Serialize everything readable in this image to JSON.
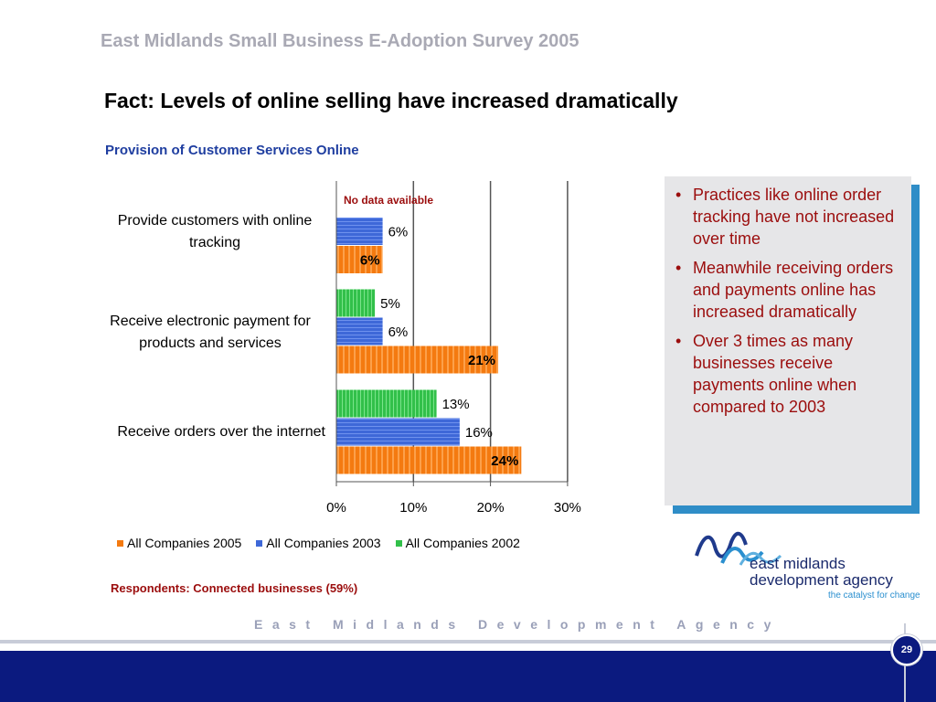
{
  "header": {
    "survey_title": "East Midlands Small Business E-Adoption Survey 2005",
    "fact_title": "Fact: Levels of online selling have increased dramatically"
  },
  "chart_data": {
    "type": "bar",
    "orientation": "horizontal",
    "title": "Provision of Customer Services Online",
    "categories": [
      "Provide customers with online tracking",
      "Receive electronic payment for products and services",
      "Receive orders over the internet"
    ],
    "series": [
      {
        "name": "All Companies 2005",
        "color": "#f47a10",
        "values": [
          6,
          21,
          24
        ],
        "labels": [
          "6%",
          "21%",
          "24%"
        ]
      },
      {
        "name": "All Companies 2003",
        "color": "#3e68d8",
        "values": [
          6,
          6,
          16
        ],
        "labels": [
          "6%",
          "6%",
          "16%"
        ]
      },
      {
        "name": "All Companies 2002",
        "color": "#32c04a",
        "values": [
          null,
          5,
          13
        ],
        "labels": [
          "",
          "5%",
          "13%"
        ]
      }
    ],
    "xlim": [
      0,
      30
    ],
    "xticks": [
      0,
      10,
      20,
      30
    ],
    "xtick_labels": [
      "0%",
      "10%",
      "20%",
      "30%"
    ],
    "annotation": "No data available",
    "legend": "bottom",
    "grid": "vertical"
  },
  "respondents": "Respondents: Connected businesses (59%)",
  "notes": [
    "Practices like online order tracking have not increased over time",
    "Meanwhile receiving orders and payments online has increased dramatically",
    "Over 3 times as many businesses receive payments online when compared to 2003"
  ],
  "logo": {
    "name_line1": "east midlands",
    "name_line2": "development agency",
    "tagline": "the catalyst for change"
  },
  "footer": {
    "agency": "East Midlands Development Agency",
    "page": "29"
  }
}
